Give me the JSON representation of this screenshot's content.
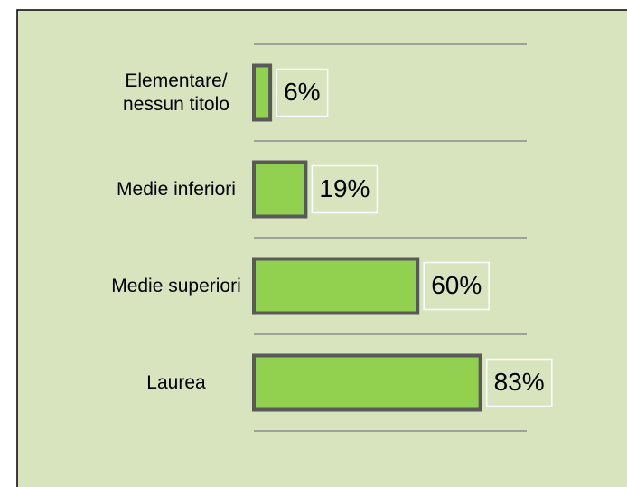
{
  "chart_data": {
    "type": "bar",
    "orientation": "horizontal",
    "categories": [
      "Elementare/ nessun titolo",
      "Medie inferiori",
      "Medie superiori",
      "Laurea"
    ],
    "values": [
      6,
      19,
      60,
      83
    ],
    "value_labels": [
      "6%",
      "19%",
      "60%",
      "83%"
    ],
    "color": "#92d050",
    "xlim": [
      0,
      100
    ]
  }
}
